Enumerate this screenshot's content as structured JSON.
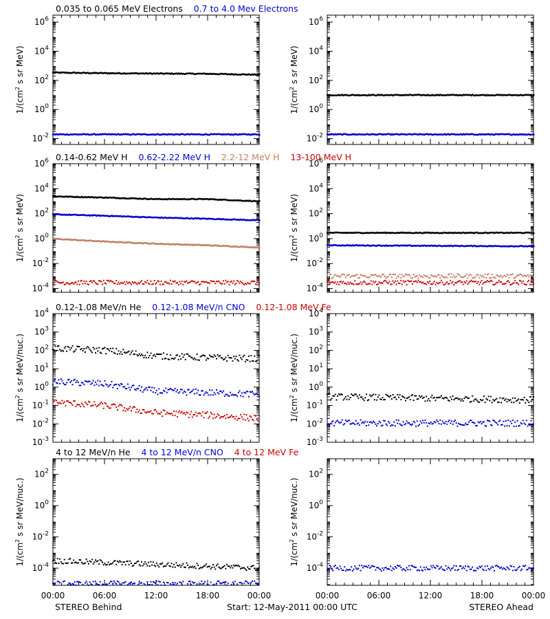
{
  "chart_data": [
    {
      "type": "scatter",
      "yscale": "log",
      "ylabel": "1/(cm² s sr MeV)",
      "ylim": [
        0.004,
        3000000
      ],
      "yticks": [
        {
          "v": 0.01,
          "m": "10",
          "e": "-2"
        },
        {
          "v": 1,
          "m": "10",
          "e": "0"
        },
        {
          "v": 100,
          "m": "10",
          "e": "2"
        },
        {
          "v": 10000,
          "m": "10",
          "e": "4"
        },
        {
          "v": 1000000,
          "m": "10",
          "e": "6"
        }
      ],
      "left": {
        "titles": [
          {
            "text": "0.035 to 0.065 MeV Electrons",
            "color": "#000000"
          },
          {
            "text": "0.7 to 4.0 Mev Electrons",
            "color": "#0000cc"
          }
        ],
        "series": [
          {
            "name": "0.035 to 0.065 MeV Electrons",
            "color": "#000000",
            "values": [
              {
                "h": 0,
                "v": 350
              },
              {
                "h": 6,
                "v": 320
              },
              {
                "h": 12,
                "v": 300
              },
              {
                "h": 18,
                "v": 290
              },
              {
                "h": 24,
                "v": 250
              }
            ]
          },
          {
            "name": "0.7 to 4.0 Mev Electrons",
            "color": "#0000cc",
            "values": [
              {
                "h": 0,
                "v": 0.02
              },
              {
                "h": 24,
                "v": 0.02
              }
            ]
          }
        ]
      },
      "right": {
        "titles": [],
        "series": [
          {
            "color": "#000000",
            "values": [
              {
                "h": 0,
                "v": 10
              },
              {
                "h": 24,
                "v": 10
              }
            ]
          },
          {
            "color": "#0000cc",
            "values": [
              {
                "h": 0,
                "v": 0.02
              },
              {
                "h": 24,
                "v": 0.02
              }
            ]
          }
        ]
      }
    },
    {
      "type": "scatter",
      "yscale": "log",
      "ylabel": "1/(cm² s sr MeV)",
      "ylim": [
        5e-05,
        1000000
      ],
      "yticks": [
        {
          "v": 0.0001,
          "m": "10",
          "e": "-4"
        },
        {
          "v": 0.01,
          "m": "10",
          "e": "-2"
        },
        {
          "v": 1,
          "m": "10",
          "e": "0"
        },
        {
          "v": 100,
          "m": "10",
          "e": "2"
        },
        {
          "v": 10000,
          "m": "10",
          "e": "4"
        },
        {
          "v": 1000000,
          "m": "10",
          "e": "6"
        }
      ],
      "left": {
        "titles": [
          {
            "text": "0.14-0.62 MeV H",
            "color": "#000000"
          },
          {
            "text": "0.62-2.22 MeV H",
            "color": "#0000cc"
          },
          {
            "text": "2.2-12 MeV H",
            "color": "#c08060"
          },
          {
            "text": "13-100 MeV H",
            "color": "#cc0000"
          }
        ],
        "series": [
          {
            "name": "0.14-0.62 MeV H",
            "color": "#000000",
            "values": [
              {
                "h": 0,
                "v": 2500
              },
              {
                "h": 6,
                "v": 2000
              },
              {
                "h": 12,
                "v": 1500
              },
              {
                "h": 18,
                "v": 1500
              },
              {
                "h": 24,
                "v": 1000
              }
            ]
          },
          {
            "name": "0.62-2.22 MeV H",
            "color": "#0000cc",
            "values": [
              {
                "h": 0,
                "v": 90
              },
              {
                "h": 6,
                "v": 70
              },
              {
                "h": 12,
                "v": 50
              },
              {
                "h": 18,
                "v": 40
              },
              {
                "h": 24,
                "v": 30
              }
            ]
          },
          {
            "name": "2.2-12 MeV H",
            "color": "#c08060",
            "values": [
              {
                "h": 0,
                "v": 1
              },
              {
                "h": 6,
                "v": 0.6
              },
              {
                "h": 12,
                "v": 0.4
              },
              {
                "h": 18,
                "v": 0.3
              },
              {
                "h": 24,
                "v": 0.2
              }
            ]
          },
          {
            "name": "13-100 MeV H",
            "color": "#cc0000",
            "values": [
              {
                "h": 0,
                "v": 0.0003
              },
              {
                "h": 24,
                "v": 0.0003
              }
            ]
          }
        ]
      },
      "right": {
        "titles": [],
        "series": [
          {
            "color": "#000000",
            "values": [
              {
                "h": 0,
                "v": 3
              },
              {
                "h": 24,
                "v": 3
              }
            ]
          },
          {
            "color": "#0000cc",
            "values": [
              {
                "h": 0,
                "v": 0.3
              },
              {
                "h": 24,
                "v": 0.25
              }
            ]
          },
          {
            "color": "#c08060",
            "values": [
              {
                "h": 0,
                "v": 0.001
              },
              {
                "h": 24,
                "v": 0.001
              }
            ]
          },
          {
            "color": "#cc0000",
            "values": [
              {
                "h": 0,
                "v": 0.0003
              },
              {
                "h": 24,
                "v": 0.0003
              }
            ]
          }
        ]
      }
    },
    {
      "type": "scatter",
      "yscale": "log",
      "ylabel": "1/(cm² s sr MeV/nuc.)",
      "ylim": [
        0.001,
        10000
      ],
      "yticks": [
        {
          "v": 0.001,
          "m": "10",
          "e": "-3"
        },
        {
          "v": 0.01,
          "m": "10",
          "e": "-2"
        },
        {
          "v": 0.1,
          "m": "10",
          "e": "-1"
        },
        {
          "v": 1,
          "m": "10",
          "e": "0"
        },
        {
          "v": 10,
          "m": "10",
          "e": "1"
        },
        {
          "v": 100,
          "m": "10",
          "e": "2"
        },
        {
          "v": 1000,
          "m": "10",
          "e": "3"
        },
        {
          "v": 10000,
          "m": "10",
          "e": "4"
        }
      ],
      "left": {
        "titles": [
          {
            "text": "0.12-1.08 MeV/n He",
            "color": "#000000"
          },
          {
            "text": "0.12-1.08 MeV/n CNO",
            "color": "#0000cc"
          },
          {
            "text": "0.12-1.08 MeV Fe",
            "color": "#cc0000"
          }
        ],
        "series": [
          {
            "name": "0.12-1.08 MeV/n He",
            "color": "#000000",
            "values": [
              {
                "h": 0,
                "v": 130
              },
              {
                "h": 6,
                "v": 100
              },
              {
                "h": 12,
                "v": 50
              },
              {
                "h": 18,
                "v": 40
              },
              {
                "h": 24,
                "v": 35
              }
            ]
          },
          {
            "name": "0.12-1.08 MeV/n CNO",
            "color": "#0000cc",
            "values": [
              {
                "h": 0,
                "v": 2
              },
              {
                "h": 6,
                "v": 1.5
              },
              {
                "h": 12,
                "v": 0.6
              },
              {
                "h": 18,
                "v": 0.5
              },
              {
                "h": 24,
                "v": 0.4
              }
            ]
          },
          {
            "name": "0.12-1.08 MeV Fe",
            "color": "#cc0000",
            "values": [
              {
                "h": 0,
                "v": 0.15
              },
              {
                "h": 6,
                "v": 0.1
              },
              {
                "h": 12,
                "v": 0.04
              },
              {
                "h": 18,
                "v": 0.03
              },
              {
                "h": 24,
                "v": 0.02
              }
            ]
          }
        ]
      },
      "right": {
        "titles": [],
        "series": [
          {
            "color": "#000000",
            "values": [
              {
                "h": 0,
                "v": 0.3
              },
              {
                "h": 24,
                "v": 0.2
              }
            ]
          },
          {
            "color": "#0000cc",
            "values": [
              {
                "h": 0,
                "v": 0.011
              },
              {
                "h": 24,
                "v": 0.011
              }
            ]
          }
        ]
      }
    },
    {
      "type": "scatter",
      "yscale": "log",
      "ylabel": "1/(cm² s sr MeV/nuc.)",
      "ylim": [
        8e-06,
        1000
      ],
      "yticks": [
        {
          "v": 0.0001,
          "m": "10",
          "e": "-4"
        },
        {
          "v": 0.01,
          "m": "10",
          "e": "-2"
        },
        {
          "v": 1,
          "m": "10",
          "e": "0"
        },
        {
          "v": 100,
          "m": "10",
          "e": "2"
        }
      ],
      "left": {
        "titles": [
          {
            "text": "4 to 12 MeV/n He",
            "color": "#000000"
          },
          {
            "text": "4 to 12 MeV/n CNO",
            "color": "#0000cc"
          },
          {
            "text": "4 to 12 MeV Fe",
            "color": "#cc0000"
          }
        ],
        "series": [
          {
            "name": "4 to 12 MeV/n He",
            "color": "#000000",
            "values": [
              {
                "h": 0,
                "v": 0.0003
              },
              {
                "h": 24,
                "v": 0.0001
              }
            ]
          },
          {
            "name": "4 to 12 MeV/n CNO",
            "color": "#0000cc",
            "values": [
              {
                "h": 0,
                "v": 1e-05
              },
              {
                "h": 24,
                "v": 1e-05
              }
            ]
          }
        ]
      },
      "right": {
        "titles": [],
        "series": [
          {
            "color": "#0000cc",
            "values": [
              {
                "h": 0,
                "v": 0.0001
              },
              {
                "h": 24,
                "v": 0.0001
              }
            ]
          }
        ]
      }
    }
  ],
  "x_axis": {
    "tick_labels": [
      "00:00",
      "06:00",
      "12:00",
      "18:00",
      "00:00"
    ]
  },
  "footer": {
    "left": "STEREO Behind",
    "center": "Start: 12-May-2011 00:00 UTC",
    "right": "STEREO Ahead"
  }
}
